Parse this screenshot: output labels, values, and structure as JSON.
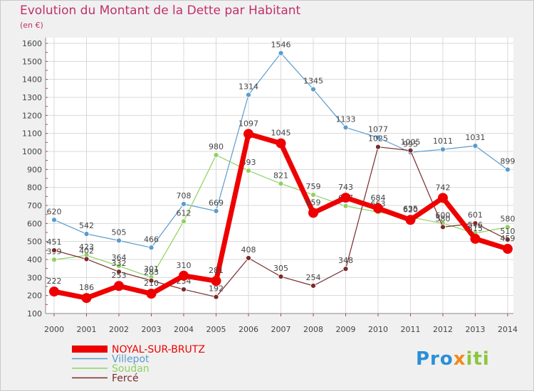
{
  "header": {
    "title": "Evolution du Montant de la Dette par Habitant",
    "unit": "(en €)"
  },
  "logo": {
    "text": "Proxiti",
    "parts": [
      "Pro",
      "x",
      "iti"
    ]
  },
  "chart_data": {
    "type": "line",
    "title": "Evolution du Montant de la Dette par Habitant",
    "subtitle": "(en €)",
    "xlabel": "",
    "ylabel": "",
    "categories": [
      "2000",
      "2001",
      "2002",
      "2003",
      "2004",
      "2005",
      "2006",
      "2007",
      "2008",
      "2009",
      "2010",
      "2011",
      "2012",
      "2013",
      "2014"
    ],
    "ylim": [
      100,
      1600
    ],
    "yticks": [
      100,
      200,
      300,
      400,
      500,
      600,
      700,
      800,
      900,
      1000,
      1100,
      1200,
      1300,
      1400,
      1500,
      1600
    ],
    "grid": true,
    "legend_position": "bottom-left",
    "series": [
      {
        "name": "NOYAL-SUR-BRUTZ",
        "color": "#ee0000",
        "values": [
          222,
          186,
          253,
          210,
          310,
          281,
          1097,
          1045,
          659,
          743,
          684,
          620,
          742,
          515,
          459
        ]
      },
      {
        "name": "Villepot",
        "color": "#5a9ccc",
        "values": [
          620,
          542,
          505,
          466,
          708,
          669,
          1314,
          1546,
          1345,
          1133,
          1077,
          995,
          1011,
          1031,
          899
        ]
      },
      {
        "name": "Soudan",
        "color": "#8fd160",
        "values": [
          399,
          423,
          364,
          301,
          612,
          980,
          893,
          821,
          759,
          697,
          663,
          635,
          600,
          546,
          580
        ]
      },
      {
        "name": "Fercé",
        "color": "#7a2a2a",
        "values": [
          451,
          402,
          332,
          283,
          234,
          192,
          408,
          305,
          254,
          348,
          1025,
          1005,
          580,
          601,
          510
        ]
      }
    ]
  }
}
